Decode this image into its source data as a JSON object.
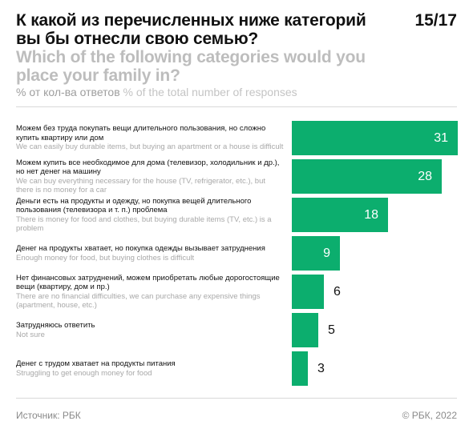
{
  "header": {
    "title_ru": "К какой из перечисленных ниже категорий вы бы отнесли свою семью?",
    "title_en": "Which of the following categories would you place your family in?",
    "page_number": "15/17",
    "subtitle_ru": "% от кол-ва ответов",
    "subtitle_en": "% of the total number of responses"
  },
  "chart_data": {
    "type": "bar",
    "orientation": "horizontal",
    "categories": [
      {
        "ru": "Можем без труда покупать вещи длительного пользования, но сложно купить квартиру или дом",
        "en": "We can easily buy durable items, but buying an apartment or a house is difficult"
      },
      {
        "ru": "Можем купить все необходимое для дома (телевизор, холодильник и др.), но нет денег на машину",
        "en": "We can buy everything necessary for the house (TV, refrigerator, etc.), but there is no money for a car"
      },
      {
        "ru": "Деньги есть на продукты и одежду, но покупка вещей длительного пользования (телевизора и т. п.) проблема",
        "en": "There is money for food and clothes, but buying durable items (TV, etc.) is a problem"
      },
      {
        "ru": "Денег на продукты хватает, но покупка одежды вызывает затруднения",
        "en": "Enough money for food, but buying clothes is difficult"
      },
      {
        "ru": "Нет финансовых затруднений, можем приобретать любые дорогостоящие вещи (квартиру, дом и пр.)",
        "en": "There are no financial difficulties, we can purchase any expensive things (apartment, house, etc.)"
      },
      {
        "ru": "Затрудняюсь ответить",
        "en": "Not sure"
      },
      {
        "ru": "Денег с трудом хватает на продукты питания",
        "en": "Struggling to get enough money for food"
      }
    ],
    "values": [
      31,
      28,
      18,
      9,
      6,
      5,
      3
    ],
    "xlim": [
      0,
      31
    ],
    "bar_color": "#0cae6e",
    "grid": false
  },
  "footer": {
    "source": "Источник: РБК",
    "copyright": "© РБК, 2022"
  }
}
